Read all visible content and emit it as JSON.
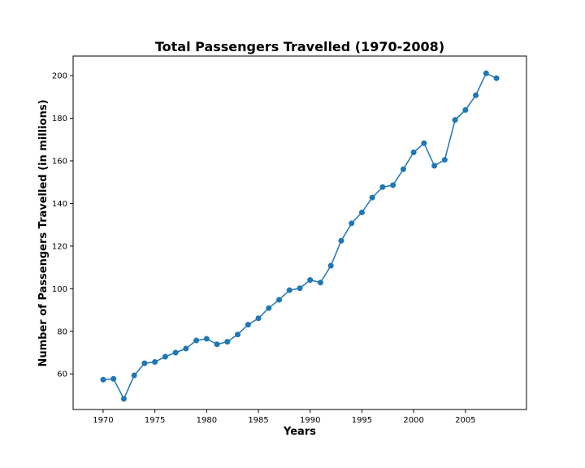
{
  "chart_data": {
    "type": "line",
    "title": "Total Passengers Travelled (1970-2008)",
    "xlabel": "Years",
    "ylabel": "Number of Passengers Travelled (in millions)",
    "xlim": [
      1967.1,
      2010.9
    ],
    "ylim": [
      43.3,
      209.2
    ],
    "xticks": [
      1970,
      1975,
      1980,
      1985,
      1990,
      1995,
      2000,
      2005
    ],
    "yticks": [
      60,
      80,
      100,
      120,
      140,
      160,
      180,
      200
    ],
    "grid": false,
    "legend": "none",
    "series": [
      {
        "color": "#1f77b4",
        "marker": "circle",
        "x": [
          1970,
          1971,
          1972,
          1973,
          1974,
          1975,
          1976,
          1977,
          1978,
          1979,
          1980,
          1981,
          1982,
          1983,
          1984,
          1985,
          1986,
          1987,
          1988,
          1989,
          1990,
          1991,
          1992,
          1993,
          1994,
          1995,
          1996,
          1997,
          1998,
          1999,
          2000,
          2001,
          2002,
          2003,
          2004,
          2005,
          2006,
          2007,
          2008
        ],
        "y": [
          57.3,
          57.7,
          48.3,
          59.3,
          65.0,
          65.6,
          68.1,
          70.0,
          71.9,
          75.7,
          76.5,
          73.9,
          75.1,
          78.5,
          83.1,
          86.1,
          90.9,
          94.8,
          99.3,
          100.2,
          104.1,
          102.9,
          110.8,
          122.5,
          130.7,
          135.8,
          142.8,
          147.7,
          148.6,
          156.1,
          164.0,
          168.3,
          157.7,
          160.5,
          179.2,
          183.9,
          190.8,
          201.1,
          198.8
        ]
      }
    ]
  }
}
